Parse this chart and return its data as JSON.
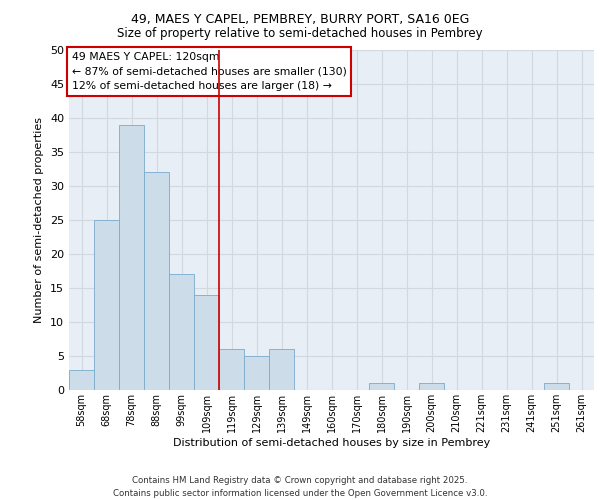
{
  "title1": "49, MAES Y CAPEL, PEMBREY, BURRY PORT, SA16 0EG",
  "title2": "Size of property relative to semi-detached houses in Pembrey",
  "xlabel": "Distribution of semi-detached houses by size in Pembrey",
  "ylabel": "Number of semi-detached properties",
  "categories": [
    "58sqm",
    "68sqm",
    "78sqm",
    "88sqm",
    "99sqm",
    "109sqm",
    "119sqm",
    "129sqm",
    "139sqm",
    "149sqm",
    "160sqm",
    "170sqm",
    "180sqm",
    "190sqm",
    "200sqm",
    "210sqm",
    "221sqm",
    "231sqm",
    "241sqm",
    "251sqm",
    "261sqm"
  ],
  "values": [
    3,
    25,
    39,
    32,
    17,
    14,
    6,
    5,
    6,
    0,
    0,
    0,
    1,
    0,
    1,
    0,
    0,
    0,
    0,
    1,
    0
  ],
  "bar_color": "#ccdce8",
  "bar_edge_color": "#7aabcc",
  "grid_color": "#d0d8e0",
  "bg_color": "#e8eef5",
  "vline_x": 6,
  "vline_color": "#cc0000",
  "annotation_title": "49 MAES Y CAPEL: 120sqm",
  "annotation_line1": "← 87% of semi-detached houses are smaller (130)",
  "annotation_line2": "12% of semi-detached houses are larger (18) →",
  "annotation_box_color": "#cc0000",
  "ylim": [
    0,
    50
  ],
  "yticks": [
    0,
    5,
    10,
    15,
    20,
    25,
    30,
    35,
    40,
    45,
    50
  ],
  "footer1": "Contains HM Land Registry data © Crown copyright and database right 2025.",
  "footer2": "Contains public sector information licensed under the Open Government Licence v3.0."
}
